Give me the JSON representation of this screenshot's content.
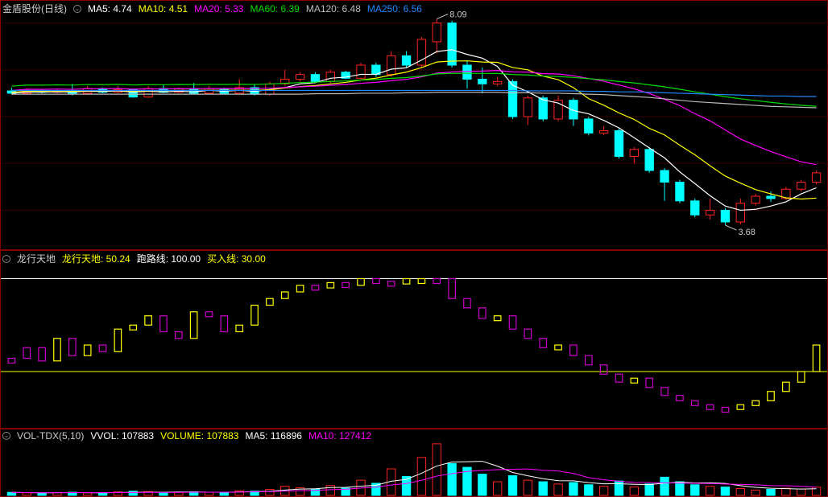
{
  "colors": {
    "bg": "#000000",
    "border": "#880000",
    "grid": "#330000",
    "text_white": "#ffffff",
    "text_gray": "#cccccc",
    "ma5": "#ffffff",
    "ma10": "#ffff00",
    "ma20": "#ff00ff",
    "ma60": "#00dd00",
    "ma120": "#bbbbbb",
    "ma250": "#2288ff",
    "up_border": "#ff2222",
    "up_fill": "#000000",
    "down_fill": "#00ffff",
    "down_border": "#00ffff",
    "ind_bar_mag": "#cc00cc",
    "ind_bar_yel": "#ffff00",
    "vol_text": "#ffff00"
  },
  "price": {
    "title": "金盾股份(日线)",
    "legend": [
      {
        "label": "MA5:",
        "value": "4.74",
        "color": "#ffffff"
      },
      {
        "label": "MA10:",
        "value": "4.51",
        "color": "#ffff00"
      },
      {
        "label": "MA20:",
        "value": "5.33",
        "color": "#ff00ff"
      },
      {
        "label": "MA60:",
        "value": "6.39",
        "color": "#00dd00"
      },
      {
        "label": "MA120:",
        "value": "6.48",
        "color": "#bbbbbb"
      },
      {
        "label": "MA250:",
        "value": "6.56",
        "color": "#2288ff"
      }
    ],
    "ylim": [
      3.2,
      8.2
    ],
    "hgrid": [
      4.0,
      5.0,
      6.0,
      7.0,
      8.0
    ],
    "hi_label": "8.09",
    "lo_label": "3.68",
    "candles": [
      {
        "o": 6.55,
        "c": 6.5,
        "h": 6.62,
        "l": 6.48
      },
      {
        "o": 6.5,
        "c": 6.55,
        "h": 6.6,
        "l": 6.48
      },
      {
        "o": 6.55,
        "c": 6.52,
        "h": 6.58,
        "l": 6.5
      },
      {
        "o": 6.52,
        "c": 6.55,
        "h": 6.58,
        "l": 6.5
      },
      {
        "o": 6.55,
        "c": 6.5,
        "h": 6.7,
        "l": 6.45
      },
      {
        "o": 6.5,
        "c": 6.6,
        "h": 6.65,
        "l": 6.48
      },
      {
        "o": 6.6,
        "c": 6.52,
        "h": 6.62,
        "l": 6.5
      },
      {
        "o": 6.52,
        "c": 6.58,
        "h": 6.65,
        "l": 6.5
      },
      {
        "o": 6.58,
        "c": 6.42,
        "h": 6.6,
        "l": 6.4
      },
      {
        "o": 6.42,
        "c": 6.6,
        "h": 6.65,
        "l": 6.4
      },
      {
        "o": 6.6,
        "c": 6.52,
        "h": 6.68,
        "l": 6.5
      },
      {
        "o": 6.52,
        "c": 6.6,
        "h": 6.62,
        "l": 6.5
      },
      {
        "o": 6.6,
        "c": 6.5,
        "h": 6.72,
        "l": 6.48
      },
      {
        "o": 6.5,
        "c": 6.6,
        "h": 6.65,
        "l": 6.48
      },
      {
        "o": 6.6,
        "c": 6.5,
        "h": 6.62,
        "l": 6.48
      },
      {
        "o": 6.5,
        "c": 6.62,
        "h": 6.8,
        "l": 6.48
      },
      {
        "o": 6.62,
        "c": 6.48,
        "h": 6.7,
        "l": 6.45
      },
      {
        "o": 6.48,
        "c": 6.7,
        "h": 6.75,
        "l": 6.45
      },
      {
        "o": 6.7,
        "c": 6.8,
        "h": 7.0,
        "l": 6.65
      },
      {
        "o": 6.8,
        "c": 6.9,
        "h": 6.95,
        "l": 6.75
      },
      {
        "o": 6.9,
        "c": 6.75,
        "h": 6.95,
        "l": 6.72
      },
      {
        "o": 6.75,
        "c": 6.95,
        "h": 7.0,
        "l": 6.72
      },
      {
        "o": 6.95,
        "c": 6.82,
        "h": 6.98,
        "l": 6.8
      },
      {
        "o": 6.82,
        "c": 7.1,
        "h": 7.15,
        "l": 6.8
      },
      {
        "o": 7.1,
        "c": 6.9,
        "h": 7.15,
        "l": 6.85
      },
      {
        "o": 6.9,
        "c": 7.3,
        "h": 7.4,
        "l": 6.85
      },
      {
        "o": 7.3,
        "c": 7.1,
        "h": 7.4,
        "l": 7.05
      },
      {
        "o": 7.1,
        "c": 7.65,
        "h": 7.7,
        "l": 7.05
      },
      {
        "o": 7.6,
        "c": 8.0,
        "h": 8.09,
        "l": 7.35
      },
      {
        "o": 8.0,
        "c": 7.1,
        "h": 8.05,
        "l": 7.05
      },
      {
        "o": 7.1,
        "c": 6.8,
        "h": 7.2,
        "l": 6.6
      },
      {
        "o": 6.8,
        "c": 6.7,
        "h": 7.05,
        "l": 6.5
      },
      {
        "o": 6.7,
        "c": 6.75,
        "h": 6.85,
        "l": 6.65
      },
      {
        "o": 6.75,
        "c": 6.0,
        "h": 6.8,
        "l": 5.95
      },
      {
        "o": 6.0,
        "c": 6.4,
        "h": 6.45,
        "l": 5.82
      },
      {
        "o": 6.4,
        "c": 5.95,
        "h": 6.45,
        "l": 5.9
      },
      {
        "o": 5.95,
        "c": 6.35,
        "h": 6.45,
        "l": 5.9
      },
      {
        "o": 6.35,
        "c": 5.95,
        "h": 6.4,
        "l": 5.8
      },
      {
        "o": 5.95,
        "c": 5.65,
        "h": 6.0,
        "l": 5.6
      },
      {
        "o": 5.65,
        "c": 5.7,
        "h": 5.8,
        "l": 5.6
      },
      {
        "o": 5.7,
        "c": 5.15,
        "h": 5.75,
        "l": 5.1
      },
      {
        "o": 5.15,
        "c": 5.3,
        "h": 5.35,
        "l": 5.0
      },
      {
        "o": 5.3,
        "c": 4.85,
        "h": 5.35,
        "l": 4.8
      },
      {
        "o": 4.85,
        "c": 4.6,
        "h": 4.9,
        "l": 4.2
      },
      {
        "o": 4.6,
        "c": 4.2,
        "h": 4.65,
        "l": 4.15
      },
      {
        "o": 4.2,
        "c": 3.9,
        "h": 4.25,
        "l": 3.85
      },
      {
        "o": 3.9,
        "c": 4.0,
        "h": 4.25,
        "l": 3.8
      },
      {
        "o": 4.0,
        "c": 3.75,
        "h": 4.05,
        "l": 3.68
      },
      {
        "o": 3.75,
        "c": 4.15,
        "h": 4.25,
        "l": 3.7
      },
      {
        "o": 4.15,
        "c": 4.3,
        "h": 4.35,
        "l": 4.1
      },
      {
        "o": 4.3,
        "c": 4.25,
        "h": 4.4,
        "l": 4.18
      },
      {
        "o": 4.25,
        "c": 4.45,
        "h": 4.5,
        "l": 4.22
      },
      {
        "o": 4.45,
        "c": 4.6,
        "h": 4.65,
        "l": 4.4
      },
      {
        "o": 4.6,
        "c": 4.8,
        "h": 4.85,
        "l": 4.55
      }
    ],
    "ma_offsets": {
      "ma5": 0,
      "ma10": 0.02,
      "ma20": 0.06,
      "ma60": 0.15
    },
    "ma120": [
      6.48,
      6.48,
      6.48,
      6.48,
      6.48,
      6.48,
      6.48,
      6.48,
      6.48,
      6.48,
      6.48,
      6.48,
      6.48,
      6.48,
      6.48,
      6.48,
      6.48,
      6.48,
      6.48,
      6.48,
      6.49,
      6.49,
      6.49,
      6.5,
      6.5,
      6.5,
      6.51,
      6.51,
      6.52,
      6.52,
      6.52,
      6.52,
      6.52,
      6.51,
      6.51,
      6.5,
      6.5,
      6.49,
      6.48,
      6.47,
      6.45,
      6.43,
      6.41,
      6.38,
      6.35,
      6.32,
      6.3,
      6.28,
      6.26,
      6.24,
      6.22,
      6.21,
      6.2,
      6.19
    ],
    "ma250": [
      6.56,
      6.56,
      6.56,
      6.56,
      6.56,
      6.56,
      6.56,
      6.56,
      6.56,
      6.56,
      6.56,
      6.56,
      6.56,
      6.56,
      6.56,
      6.56,
      6.56,
      6.56,
      6.56,
      6.56,
      6.56,
      6.56,
      6.56,
      6.56,
      6.56,
      6.56,
      6.56,
      6.56,
      6.56,
      6.56,
      6.56,
      6.56,
      6.56,
      6.56,
      6.55,
      6.55,
      6.55,
      6.55,
      6.54,
      6.54,
      6.53,
      6.53,
      6.52,
      6.51,
      6.5,
      6.49,
      6.48,
      6.47,
      6.46,
      6.45,
      6.44,
      6.44,
      6.43,
      6.43
    ]
  },
  "indicator": {
    "title": "龙行天地",
    "legend": [
      {
        "label": "龙行天地:",
        "value": "50.24",
        "color": "#ffff00"
      },
      {
        "label": "跑路线:",
        "value": "100.00",
        "color": "#ffffff"
      },
      {
        "label": "买入线:",
        "value": "30.00",
        "color": "#ffff00"
      }
    ],
    "ylim": [
      -10,
      110
    ],
    "runaway_line": 100,
    "buyin_line": 30,
    "bars": [
      {
        "v": 40,
        "c": "m"
      },
      {
        "v": 48,
        "c": "m"
      },
      {
        "v": 38,
        "c": "m"
      },
      {
        "v": 55,
        "c": "y"
      },
      {
        "v": 42,
        "c": "m"
      },
      {
        "v": 50,
        "c": "y"
      },
      {
        "v": 45,
        "c": "m"
      },
      {
        "v": 62,
        "c": "y"
      },
      {
        "v": 65,
        "c": "y"
      },
      {
        "v": 72,
        "c": "y"
      },
      {
        "v": 60,
        "c": "m"
      },
      {
        "v": 55,
        "c": "m"
      },
      {
        "v": 75,
        "c": "y"
      },
      {
        "v": 72,
        "c": "m"
      },
      {
        "v": 60,
        "c": "m"
      },
      {
        "v": 65,
        "c": "y"
      },
      {
        "v": 80,
        "c": "y"
      },
      {
        "v": 85,
        "c": "y"
      },
      {
        "v": 90,
        "c": "y"
      },
      {
        "v": 95,
        "c": "y"
      },
      {
        "v": 93,
        "c": "m"
      },
      {
        "v": 97,
        "c": "y"
      },
      {
        "v": 95,
        "c": "m"
      },
      {
        "v": 100,
        "c": "y"
      },
      {
        "v": 98,
        "c": "m"
      },
      {
        "v": 96,
        "c": "m"
      },
      {
        "v": 100,
        "c": "y"
      },
      {
        "v": 100,
        "c": "y"
      },
      {
        "v": 100,
        "c": "m"
      },
      {
        "v": 85,
        "c": "m"
      },
      {
        "v": 78,
        "c": "m"
      },
      {
        "v": 70,
        "c": "m"
      },
      {
        "v": 72,
        "c": "y"
      },
      {
        "v": 62,
        "c": "m"
      },
      {
        "v": 55,
        "c": "m"
      },
      {
        "v": 48,
        "c": "m"
      },
      {
        "v": 50,
        "c": "y"
      },
      {
        "v": 42,
        "c": "m"
      },
      {
        "v": 35,
        "c": "m"
      },
      {
        "v": 28,
        "c": "m"
      },
      {
        "v": 22,
        "c": "m"
      },
      {
        "v": 25,
        "c": "y"
      },
      {
        "v": 18,
        "c": "m"
      },
      {
        "v": 12,
        "c": "m"
      },
      {
        "v": 8,
        "c": "m"
      },
      {
        "v": 5,
        "c": "m"
      },
      {
        "v": 3,
        "c": "m"
      },
      {
        "v": 2,
        "c": "m"
      },
      {
        "v": 5,
        "c": "y"
      },
      {
        "v": 8,
        "c": "y"
      },
      {
        "v": 15,
        "c": "y"
      },
      {
        "v": 22,
        "c": "y"
      },
      {
        "v": 30,
        "c": "y"
      },
      {
        "v": 50,
        "c": "y"
      }
    ]
  },
  "volume": {
    "title": "VOL-TDX(5,10)",
    "legend": [
      {
        "label": "VVOL:",
        "value": "107883",
        "color": "#ffffff"
      },
      {
        "label": "VOLUME:",
        "value": "107883",
        "color": "#ffff00"
      },
      {
        "label": "MA5:",
        "value": "116896",
        "color": "#ffffff"
      },
      {
        "label": "MA10:",
        "value": "127412",
        "color": "#ff00ff"
      }
    ],
    "ylim": [
      0,
      700000
    ],
    "bars": [
      {
        "v": 40,
        "u": 0
      },
      {
        "v": 35,
        "u": 1
      },
      {
        "v": 30,
        "u": 0
      },
      {
        "v": 38,
        "u": 1
      },
      {
        "v": 42,
        "u": 0
      },
      {
        "v": 35,
        "u": 1
      },
      {
        "v": 30,
        "u": 0
      },
      {
        "v": 45,
        "u": 1
      },
      {
        "v": 55,
        "u": 0
      },
      {
        "v": 50,
        "u": 1
      },
      {
        "v": 35,
        "u": 0
      },
      {
        "v": 40,
        "u": 1
      },
      {
        "v": 48,
        "u": 0
      },
      {
        "v": 42,
        "u": 1
      },
      {
        "v": 38,
        "u": 0
      },
      {
        "v": 60,
        "u": 1
      },
      {
        "v": 55,
        "u": 0
      },
      {
        "v": 80,
        "u": 1
      },
      {
        "v": 120,
        "u": 1
      },
      {
        "v": 100,
        "u": 1
      },
      {
        "v": 85,
        "u": 0
      },
      {
        "v": 130,
        "u": 1
      },
      {
        "v": 95,
        "u": 0
      },
      {
        "v": 200,
        "u": 1
      },
      {
        "v": 160,
        "u": 0
      },
      {
        "v": 350,
        "u": 1
      },
      {
        "v": 250,
        "u": 0
      },
      {
        "v": 500,
        "u": 1
      },
      {
        "v": 680,
        "u": 1
      },
      {
        "v": 420,
        "u": 0
      },
      {
        "v": 370,
        "u": 0
      },
      {
        "v": 280,
        "u": 0
      },
      {
        "v": 180,
        "u": 1
      },
      {
        "v": 260,
        "u": 0
      },
      {
        "v": 200,
        "u": 1
      },
      {
        "v": 180,
        "u": 0
      },
      {
        "v": 150,
        "u": 1
      },
      {
        "v": 170,
        "u": 0
      },
      {
        "v": 140,
        "u": 0
      },
      {
        "v": 120,
        "u": 1
      },
      {
        "v": 190,
        "u": 0
      },
      {
        "v": 110,
        "u": 1
      },
      {
        "v": 150,
        "u": 0
      },
      {
        "v": 240,
        "u": 0
      },
      {
        "v": 180,
        "u": 0
      },
      {
        "v": 140,
        "u": 0
      },
      {
        "v": 120,
        "u": 1
      },
      {
        "v": 110,
        "u": 0
      },
      {
        "v": 90,
        "u": 1
      },
      {
        "v": 70,
        "u": 1
      },
      {
        "v": 80,
        "u": 0
      },
      {
        "v": 95,
        "u": 1
      },
      {
        "v": 85,
        "u": 1
      },
      {
        "v": 108,
        "u": 1
      }
    ]
  }
}
